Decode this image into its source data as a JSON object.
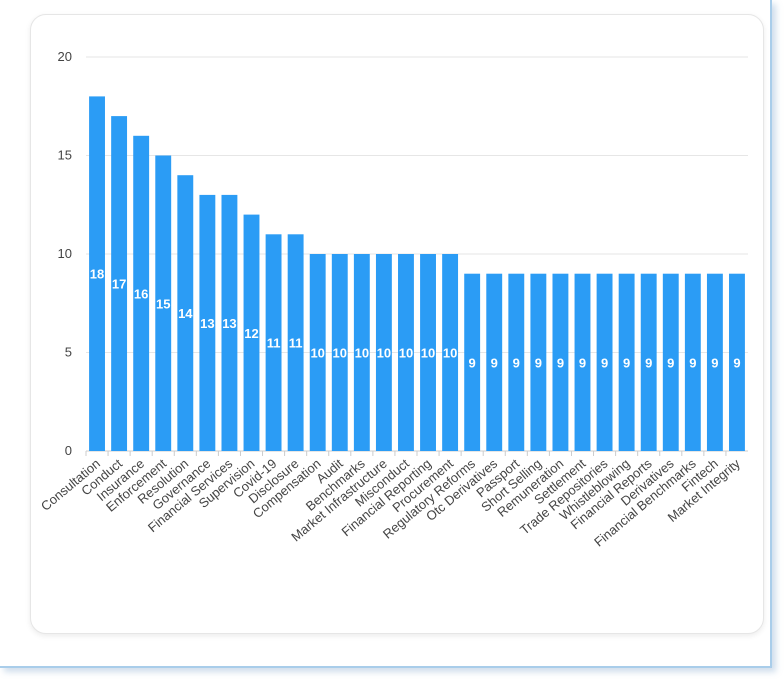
{
  "chart_data": {
    "type": "bar",
    "title": "",
    "xlabel": "",
    "ylabel": "",
    "ylim": [
      0,
      20
    ],
    "yticks": [
      0,
      5,
      10,
      15,
      20
    ],
    "grid": true,
    "bar_color": "#2b9cf5",
    "categories": [
      "Consultation",
      "Conduct",
      "Insurance",
      "Enforcement",
      "Resolution",
      "Governance",
      "Financial Services",
      "Supervision",
      "Covid-19",
      "Disclosure",
      "Compensation",
      "Audit",
      "Benchmarks",
      "Market Infrastructure",
      "Misconduct",
      "Financial Reporting",
      "Procurement",
      "Regulatory Reforms",
      "Otc Derivatives",
      "Passport",
      "Short Selling",
      "Remuneration",
      "Settlement",
      "Trade Repositories",
      "Whistleblowing",
      "Financial Reports",
      "Derivatives",
      "Financial Benchmarks",
      "Fintech",
      "Market Integrity"
    ],
    "values": [
      18,
      17,
      16,
      15,
      14,
      13,
      13,
      12,
      11,
      11,
      10,
      10,
      10,
      10,
      10,
      10,
      10,
      9,
      9,
      9,
      9,
      9,
      9,
      9,
      9,
      9,
      9,
      9,
      9,
      9
    ]
  }
}
